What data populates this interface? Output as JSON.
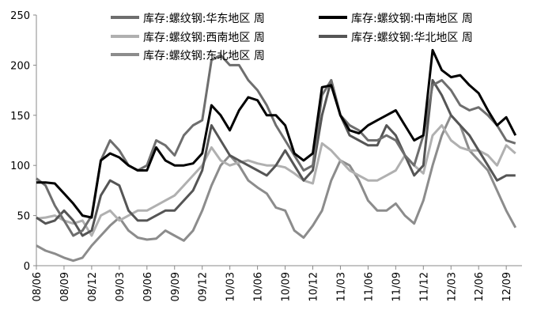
{
  "chart_data": {
    "type": "line",
    "title": "",
    "xlabel": "",
    "ylabel": "",
    "ylim": [
      0,
      250
    ],
    "yticks": [
      "0",
      "50",
      "100",
      "150",
      "200",
      "250"
    ],
    "ytick_values": [
      0,
      50,
      100,
      150,
      200,
      250
    ],
    "xtick_labels": [
      "08/06",
      "08/09",
      "08/12",
      "09/03",
      "09/06",
      "09/09",
      "09/12",
      "10/03",
      "10/06",
      "10/09",
      "10/12",
      "11/03",
      "11/06",
      "11/09",
      "11/12",
      "12/03",
      "12/06",
      "12/09"
    ],
    "x_note": "monthly points from 08/06 to 12/10; tick every 3 months",
    "x": [
      "08/06",
      "08/07",
      "08/08",
      "08/09",
      "08/10",
      "08/11",
      "08/12",
      "09/01",
      "09/02",
      "09/03",
      "09/04",
      "09/05",
      "09/06",
      "09/07",
      "09/08",
      "09/09",
      "09/10",
      "09/11",
      "09/12",
      "10/01",
      "10/02",
      "10/03",
      "10/04",
      "10/05",
      "10/06",
      "10/07",
      "10/08",
      "10/09",
      "10/10",
      "10/11",
      "10/12",
      "11/01",
      "11/02",
      "11/03",
      "11/04",
      "11/05",
      "11/06",
      "11/07",
      "11/08",
      "11/09",
      "11/10",
      "11/11",
      "11/12",
      "12/01",
      "12/02",
      "12/03",
      "12/04",
      "12/05",
      "12/06",
      "12/07",
      "12/08",
      "12/09",
      "12/10"
    ],
    "grid": false,
    "legend_position": "top",
    "series": [
      {
        "name": "库存:螺纹钢:华东地区 周",
        "color": "#6e6e6e",
        "values": [
          87,
          80,
          60,
          45,
          30,
          35,
          50,
          105,
          125,
          115,
          100,
          95,
          100,
          125,
          120,
          110,
          130,
          140,
          145,
          205,
          210,
          200,
          200,
          185,
          175,
          160,
          140,
          125,
          110,
          95,
          100,
          170,
          185,
          150,
          140,
          135,
          125,
          125,
          130,
          125,
          110,
          100,
          130,
          180,
          185,
          175,
          160,
          155,
          158,
          150,
          140,
          125,
          122
        ]
      },
      {
        "name": "库存:螺纹钢:中南地区 周",
        "color": "#000000",
        "values": [
          83,
          83,
          82,
          72,
          62,
          50,
          48,
          105,
          112,
          108,
          100,
          95,
          95,
          118,
          105,
          100,
          100,
          102,
          112,
          160,
          150,
          135,
          155,
          168,
          165,
          150,
          150,
          140,
          112,
          105,
          112,
          178,
          180,
          150,
          135,
          132,
          140,
          145,
          150,
          155,
          140,
          125,
          130,
          215,
          195,
          188,
          190,
          180,
          172,
          155,
          140,
          148,
          130
        ]
      },
      {
        "name": "库存:螺纹钢:西南地区 周",
        "color": "#b0b0b0",
        "values": [
          47,
          48,
          50,
          45,
          42,
          45,
          30,
          50,
          55,
          45,
          50,
          55,
          55,
          60,
          65,
          70,
          80,
          90,
          100,
          118,
          105,
          100,
          103,
          105,
          102,
          100,
          100,
          98,
          92,
          85,
          82,
          122,
          115,
          105,
          95,
          90,
          85,
          85,
          90,
          95,
          110,
          100,
          92,
          130,
          140,
          125,
          118,
          115,
          115,
          110,
          100,
          120,
          112
        ]
      },
      {
        "name": "库存:螺纹钢:华北地区 周",
        "color": "#555555",
        "values": [
          48,
          42,
          45,
          55,
          45,
          30,
          35,
          70,
          85,
          80,
          55,
          45,
          45,
          50,
          55,
          55,
          65,
          75,
          95,
          140,
          125,
          110,
          105,
          100,
          95,
          90,
          100,
          115,
          100,
          85,
          95,
          150,
          185,
          150,
          130,
          125,
          120,
          120,
          140,
          130,
          110,
          90,
          100,
          185,
          170,
          150,
          140,
          130,
          115,
          100,
          85,
          90,
          90
        ]
      },
      {
        "name": "库存:螺纹钢:东北地区 周",
        "color": "#8c8c8c",
        "values": [
          20,
          15,
          12,
          8,
          5,
          8,
          20,
          30,
          40,
          48,
          35,
          28,
          26,
          27,
          35,
          30,
          25,
          35,
          55,
          80,
          100,
          110,
          100,
          85,
          78,
          72,
          58,
          55,
          35,
          28,
          40,
          55,
          85,
          105,
          100,
          85,
          65,
          55,
          55,
          62,
          50,
          42,
          65,
          100,
          130,
          150,
          140,
          115,
          105,
          95,
          75,
          55,
          38
        ]
      }
    ]
  }
}
